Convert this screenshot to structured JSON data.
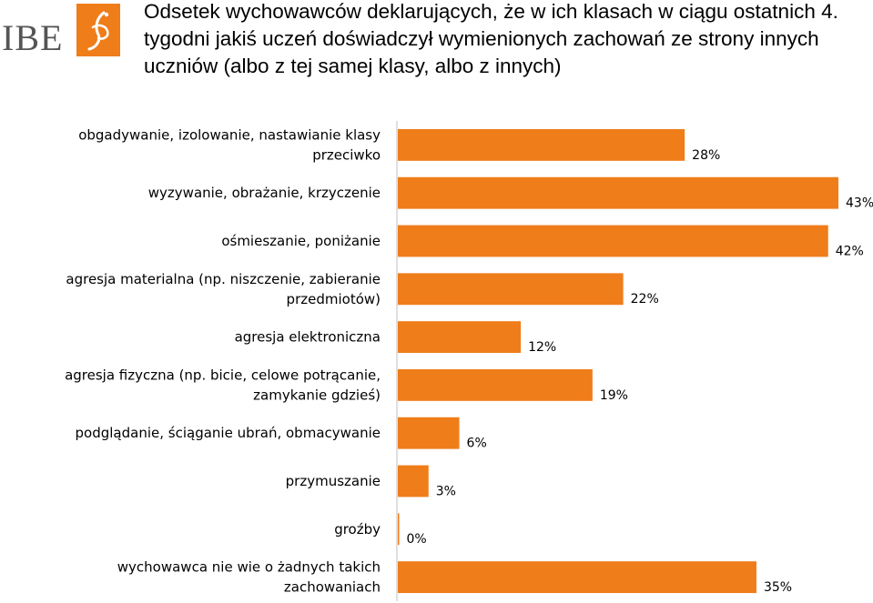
{
  "logo": {
    "text": "IBE",
    "icon": "ibe-logo-mark",
    "accent": "#ef7d1a"
  },
  "colors": {
    "bar": "#ef7d1a",
    "axis": "#bfbfbf"
  },
  "chart_data": {
    "type": "bar",
    "orientation": "horizontal",
    "title": "Odsetek wychowawców deklarujących, że w ich klasach w ciągu ostatnich 4. tygodni jakiś uczeń doświadczył wymienionych zachowań ze strony innych uczniów (albo z tej samej klasy, albo z innych)",
    "categories": [
      [
        "obgadywanie, izolowanie, nastawianie klasy",
        "przeciwko"
      ],
      [
        "wyzywanie, obrażanie, krzyczenie"
      ],
      [
        "ośmieszanie, poniżanie"
      ],
      [
        "agresja materialna (np. niszczenie, zabieranie",
        "przedmiotów)"
      ],
      [
        "agresja elektroniczna"
      ],
      [
        "agresja fizyczna (np. bicie, celowe potrącanie,",
        "zamykanie gdzieś)"
      ],
      [
        "podglądanie, ściąganie ubrań, obmacywanie"
      ],
      [
        "przymuszanie"
      ],
      [
        "groźby"
      ],
      [
        "wychowawca nie wie o żadnych takich",
        "zachowaniach"
      ]
    ],
    "values": [
      28,
      43,
      42,
      22,
      12,
      19,
      6,
      3,
      0,
      35
    ],
    "value_labels": [
      "28%",
      "43%",
      "42%",
      "22%",
      "12%",
      "19%",
      "6%",
      "3%",
      "0%",
      "35%"
    ],
    "unit": "%",
    "xlim": [
      0,
      43
    ],
    "grid": false,
    "legend": false
  }
}
